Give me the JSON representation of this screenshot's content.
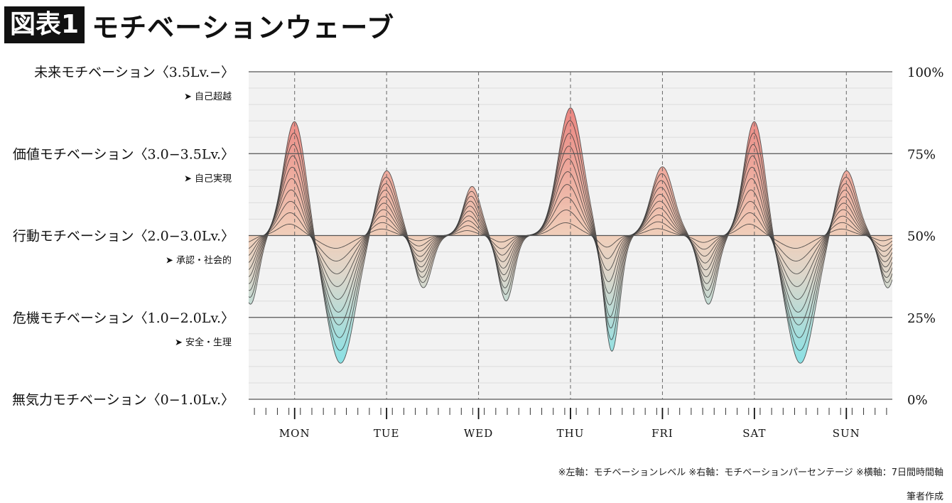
{
  "title": {
    "tag": "図表1",
    "text": "モチベーションウェーブ"
  },
  "chart_data": {
    "type": "area",
    "left_axis": {
      "levels": [
        {
          "label": "未来モチベーション〈3.5Lv.−〉",
          "sub": "➤ 自己超越",
          "value": 100
        },
        {
          "label": "価値モチベーション〈3.0−3.5Lv.〉",
          "sub": "➤ 自己実現",
          "value": 75
        },
        {
          "label": "行動モチベーション〈2.0−3.0Lv.〉",
          "sub": "➤ 承認・社会的",
          "value": 50
        },
        {
          "label": "危機モチベーション〈1.0−2.0Lv.〉",
          "sub": "➤ 安全・生理",
          "value": 25
        },
        {
          "label": "無気力モチベーション〈0−1.0Lv.〉",
          "sub": "",
          "value": 0
        }
      ]
    },
    "right_axis": {
      "ticks": [
        "100%",
        "75%",
        "50%",
        "25%",
        "0%"
      ],
      "ylim": [
        0,
        100
      ]
    },
    "x_axis": {
      "categories": [
        "MON",
        "TUE",
        "WED",
        "THU",
        "FRI",
        "SAT",
        "SUN"
      ],
      "xlim": [
        -0.5,
        6.5
      ],
      "minor_ticks_per_day": 8
    },
    "baseline": 50,
    "wave": {
      "layers": 10,
      "peaks": [
        {
          "x": 0.0,
          "y": 85,
          "width": 0.17
        },
        {
          "x": 0.5,
          "y": 11,
          "width": 0.22
        },
        {
          "x": 1.0,
          "y": 70,
          "width": 0.16
        },
        {
          "x": 1.4,
          "y": 34,
          "width": 0.13
        },
        {
          "x": 1.93,
          "y": 65,
          "width": 0.13
        },
        {
          "x": 2.3,
          "y": 30,
          "width": 0.12
        },
        {
          "x": 3.0,
          "y": 89,
          "width": 0.19
        },
        {
          "x": 3.45,
          "y": 14.5,
          "width": 0.12
        },
        {
          "x": 4.0,
          "y": 71,
          "width": 0.17
        },
        {
          "x": 4.5,
          "y": 29,
          "width": 0.13
        },
        {
          "x": 5.0,
          "y": 85,
          "width": 0.16
        },
        {
          "x": 5.5,
          "y": 11,
          "width": 0.22
        },
        {
          "x": 6.0,
          "y": 70,
          "width": 0.16
        },
        {
          "x": 6.45,
          "y": 34,
          "width": 0.12
        },
        {
          "x": -0.48,
          "y": 29,
          "width": 0.12
        }
      ]
    },
    "colors": {
      "high": "#e85a5a",
      "mid": "#f0c8b0",
      "low": "#4fe3ef",
      "background": "#f2f2f2",
      "line": "#3a3a3a"
    },
    "grid": true
  },
  "notes": {
    "axes_note": "※左軸：モチベーションレベル ※右軸：モチベーションパーセンテージ ※横軸：7日間時間軸",
    "credit": "筆者作成"
  }
}
